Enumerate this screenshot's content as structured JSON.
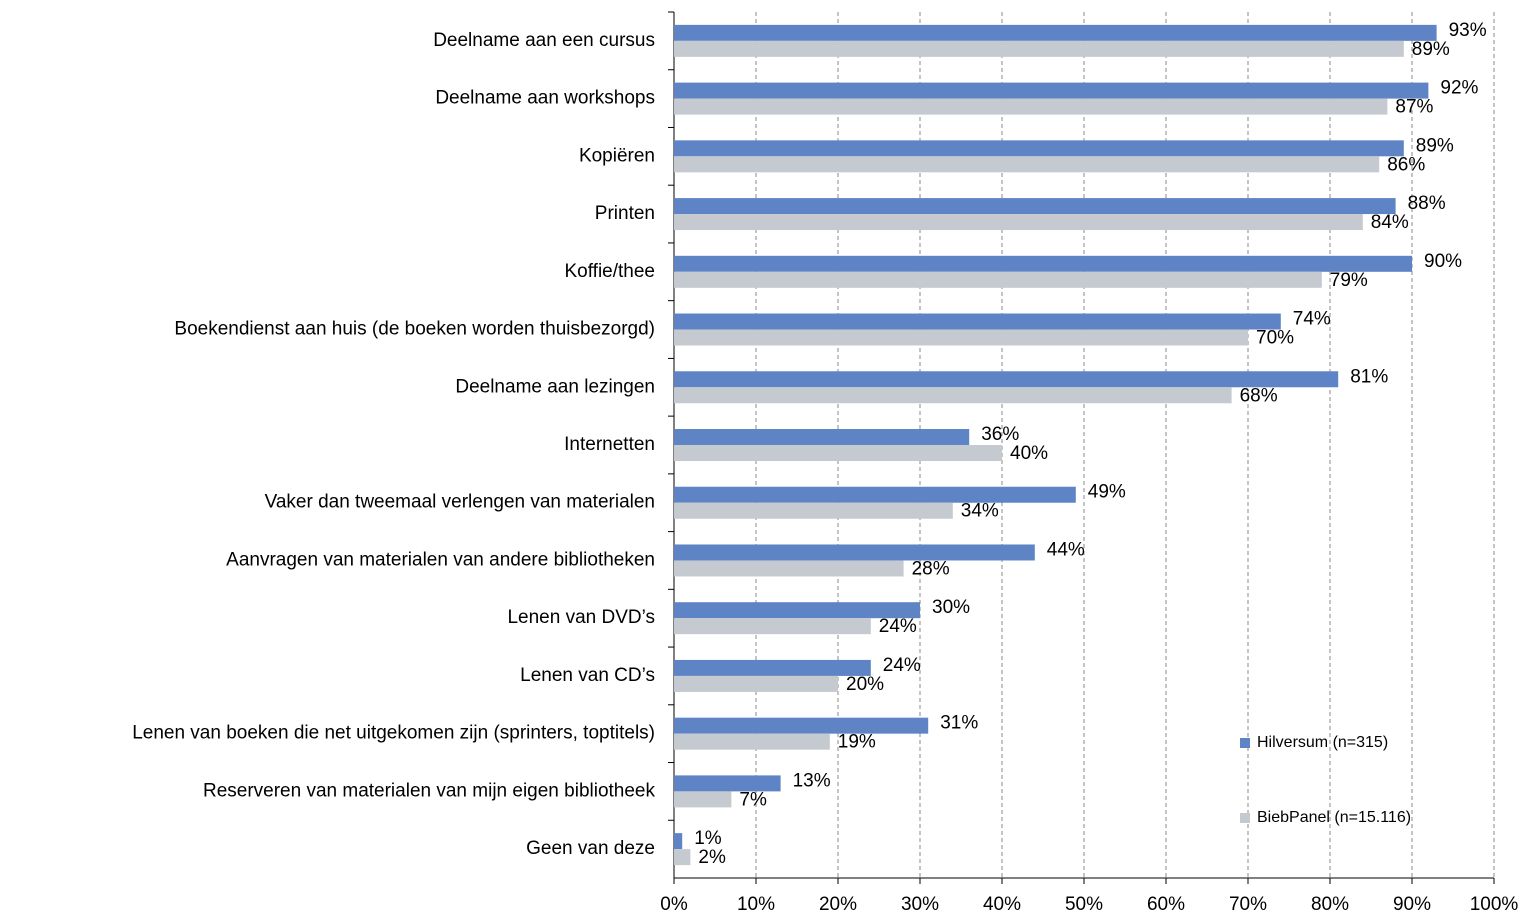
{
  "chart_data": {
    "type": "hbar",
    "categories": [
      "Deelname aan een cursus",
      "Deelname aan workshops",
      "Kopiëren",
      "Printen",
      "Koffie/thee",
      "Boekendienst aan huis (de boeken worden thuisbezorgd)",
      "Deelname aan lezingen",
      "Internetten",
      "Vaker dan tweemaal verlengen van materialen",
      "Aanvragen van materialen van andere bibliotheken",
      "Lenen van DVD’s",
      "Lenen van CD’s",
      "Lenen van boeken die net uitgekomen zijn (sprinters, toptitels)",
      "Reserveren van materialen van mijn eigen bibliotheek",
      "Geen van deze"
    ],
    "series": [
      {
        "name": "Hilversum (n=315)",
        "color": "#5f84c6",
        "values": [
          93,
          92,
          89,
          88,
          90,
          74,
          81,
          36,
          49,
          44,
          30,
          24,
          31,
          13,
          1
        ],
        "value_labels": [
          "93%",
          "92%",
          "89%",
          "88%",
          "90%",
          "74%",
          "81%",
          "36%",
          "49%",
          "44%",
          "30%",
          "24%",
          "31%",
          "13%",
          "1%"
        ]
      },
      {
        "name": "BiebPanel (n=15.116)",
        "color": "#c5cad1",
        "values": [
          89,
          87,
          86,
          84,
          79,
          70,
          68,
          40,
          34,
          28,
          24,
          20,
          19,
          7,
          2
        ],
        "value_labels": [
          "89%",
          "87%",
          "86%",
          "84%",
          "79%",
          "70%",
          "68%",
          "40%",
          "34%",
          "28%",
          "24%",
          "20%",
          "19%",
          "7%",
          "2%"
        ]
      }
    ],
    "xlim": [
      0,
      100
    ],
    "xticks": [
      {
        "value": 0,
        "label": "0%"
      },
      {
        "value": 10,
        "label": "10%"
      },
      {
        "value": 20,
        "label": "20%"
      },
      {
        "value": 30,
        "label": "30%"
      },
      {
        "value": 40,
        "label": "40%"
      },
      {
        "value": 50,
        "label": "50%"
      },
      {
        "value": 60,
        "label": "60%"
      },
      {
        "value": 70,
        "label": "70%"
      },
      {
        "value": 80,
        "label": "80%"
      },
      {
        "value": 90,
        "label": "90%"
      },
      {
        "value": 100,
        "label": "100%"
      }
    ],
    "grid": true,
    "legend": "lower-right"
  }
}
